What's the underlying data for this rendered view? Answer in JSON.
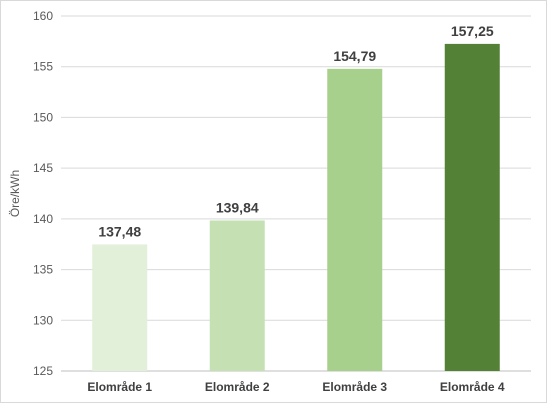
{
  "chart_data": {
    "type": "bar",
    "categories": [
      "Elområde 1",
      "Elområde 2",
      "Elområde 3",
      "Elområde 4"
    ],
    "values": [
      137.48,
      139.84,
      154.79,
      157.25
    ],
    "data_labels": [
      "137,48",
      "139,84",
      "154,79",
      "157,25"
    ],
    "bar_colors": [
      "#e2efd9",
      "#c5e0b3",
      "#a8d08d",
      "#538135"
    ],
    "title": "",
    "xlabel": "",
    "ylabel": "Öre/kWh",
    "ylim": [
      125,
      160
    ],
    "yticks": [
      125,
      130,
      135,
      140,
      145,
      150,
      155,
      160
    ],
    "grid": true,
    "legend": "none"
  },
  "colors": {
    "gridline": "#d9d9d9",
    "axis_line": "#bfbfbf",
    "text": "#595959",
    "label_text": "#404040"
  }
}
